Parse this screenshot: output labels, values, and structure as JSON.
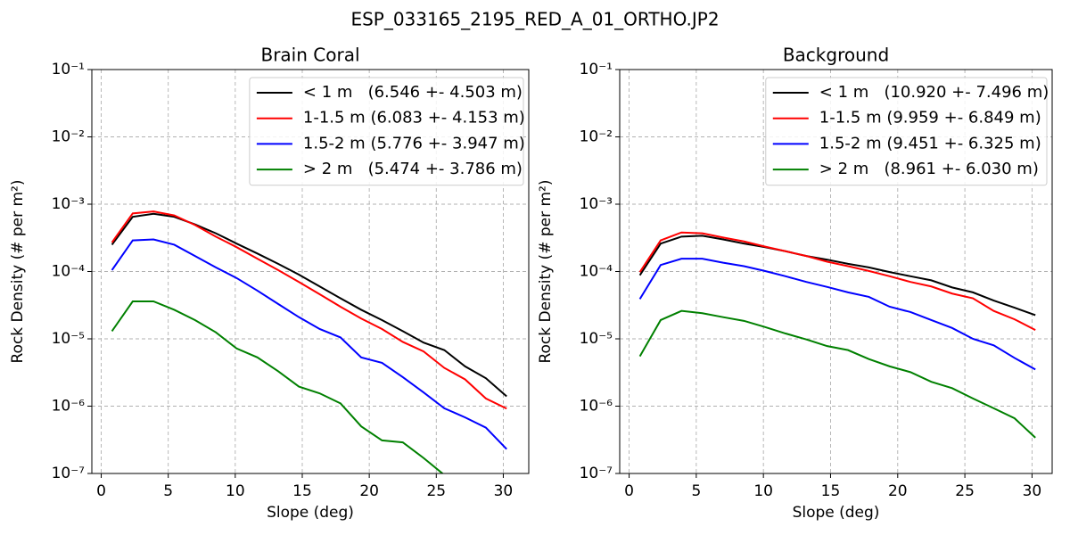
{
  "title": "ESP_033165_2195_RED_A_01_ORTHO.JP2",
  "chart_data": [
    {
      "type": "line",
      "title": "Brain Coral",
      "xlabel": "Slope (deg)",
      "ylabel": "Rock Density (# per m²)",
      "log_y": true,
      "grid": true,
      "legend": "upper right",
      "xlim": [
        -0.7,
        31.9
      ],
      "xticks": [
        0,
        5,
        10,
        15,
        20,
        25,
        30
      ],
      "ylim": [
        1e-07,
        0.1
      ],
      "yticks": [
        {
          "value": 1e-07,
          "label": "10⁻⁷"
        },
        {
          "value": 1e-06,
          "label": "10⁻⁶"
        },
        {
          "value": 1e-05,
          "label": "10⁻⁵"
        },
        {
          "value": 0.0001,
          "label": "10⁻⁴"
        },
        {
          "value": 0.001,
          "label": "10⁻³"
        },
        {
          "value": 0.01,
          "label": "10⁻²"
        },
        {
          "value": 0.1,
          "label": "10⁻¹"
        }
      ],
      "x": [
        0.8,
        2.35,
        3.9,
        5.45,
        7.0,
        8.55,
        10.1,
        11.65,
        13.2,
        14.75,
        16.3,
        17.85,
        19.4,
        20.95,
        22.5,
        24.05,
        25.6,
        27.15,
        28.7,
        30.25
      ],
      "series": [
        {
          "name": "< 1 m   (6.546 +- 4.503 m)",
          "color": "#000000",
          "values": [
            0.00025,
            0.00065,
            0.00072,
            0.00065,
            0.0005,
            0.00037,
            0.00026,
            0.000185,
            0.00013,
            9e-05,
            6e-05,
            4e-05,
            2.7e-05,
            1.9e-05,
            1.3e-05,
            8.8e-06,
            6.8e-06,
            3.9e-06,
            2.6e-06,
            1.4e-06
          ]
        },
        {
          "name": "1-1.5 m (6.083 +- 4.153 m)",
          "color": "#ff0000",
          "values": [
            0.00027,
            0.00073,
            0.00078,
            0.00068,
            0.00049,
            0.00033,
            0.00023,
            0.000155,
            0.000105,
            7e-05,
            4.6e-05,
            3e-05,
            2e-05,
            1.4e-05,
            9e-06,
            6.5e-06,
            3.7e-06,
            2.5e-06,
            1.3e-06,
            9.2e-07
          ]
        },
        {
          "name": "1.5-2 m (5.776 +- 3.947 m)",
          "color": "#0000ff",
          "values": [
            0.000105,
            0.00029,
            0.0003,
            0.00025,
            0.00017,
            0.000115,
            8e-05,
            5.2e-05,
            3.3e-05,
            2.1e-05,
            1.4e-05,
            1.05e-05,
            5.3e-06,
            4.4e-06,
            2.7e-06,
            1.6e-06,
            9.3e-07,
            6.8e-07,
            4.8e-07,
            2.3e-07
          ]
        },
        {
          "name": "> 2 m   (5.474 +- 3.786 m)",
          "color": "#008000",
          "values": [
            1.3e-05,
            3.6e-05,
            3.6e-05,
            2.7e-05,
            1.9e-05,
            1.25e-05,
            7.2e-06,
            5.3e-06,
            3.3e-06,
            1.95e-06,
            1.55e-06,
            1.1e-06,
            5e-07,
            3.1e-07,
            2.9e-07,
            1.7e-07,
            9.5e-08,
            null,
            null,
            null
          ]
        }
      ]
    },
    {
      "type": "line",
      "title": "Background",
      "xlabel": "Slope (deg)",
      "ylabel": "Rock Density (# per m²)",
      "log_y": true,
      "grid": true,
      "legend": "upper right",
      "xlim": [
        -0.7,
        31.5
      ],
      "xticks": [
        0,
        5,
        10,
        15,
        20,
        25,
        30
      ],
      "ylim": [
        1e-07,
        0.1
      ],
      "yticks": [
        {
          "value": 1e-07,
          "label": "10⁻⁷"
        },
        {
          "value": 1e-06,
          "label": "10⁻⁶"
        },
        {
          "value": 1e-05,
          "label": "10⁻⁵"
        },
        {
          "value": 0.0001,
          "label": "10⁻⁴"
        },
        {
          "value": 0.001,
          "label": "10⁻³"
        },
        {
          "value": 0.01,
          "label": "10⁻²"
        },
        {
          "value": 0.1,
          "label": "10⁻¹"
        }
      ],
      "x": [
        0.8,
        2.35,
        3.9,
        5.45,
        7.0,
        8.55,
        10.1,
        11.65,
        13.2,
        14.75,
        16.3,
        17.85,
        19.4,
        20.95,
        22.5,
        24.05,
        25.6,
        27.15,
        28.7,
        30.25
      ],
      "series": [
        {
          "name": "< 1 m   (10.920 +- 7.496 m)",
          "color": "#000000",
          "values": [
            8.8e-05,
            0.00026,
            0.00033,
            0.00034,
            0.0003,
            0.00026,
            0.00023,
            0.0002,
            0.00017,
            0.00015,
            0.00013,
            0.000115,
            9.8e-05,
            8.5e-05,
            7.4e-05,
            5.8e-05,
            4.9e-05,
            3.7e-05,
            2.9e-05,
            2.25e-05
          ]
        },
        {
          "name": "1-1.5 m (9.959 +- 6.849 m)",
          "color": "#ff0000",
          "values": [
            9.8e-05,
            0.00029,
            0.00038,
            0.00037,
            0.00032,
            0.00028,
            0.000235,
            0.0002,
            0.00017,
            0.00014,
            0.00012,
            0.000102,
            8.5e-05,
            7e-05,
            6e-05,
            4.7e-05,
            4e-05,
            2.6e-05,
            1.95e-05,
            1.35e-05
          ]
        },
        {
          "name": "1.5-2 m (9.451 +- 6.325 m)",
          "color": "#0000ff",
          "values": [
            3.9e-05,
            0.000125,
            0.000155,
            0.000155,
            0.000135,
            0.00012,
            0.000102,
            8.5e-05,
            7e-05,
            5.9e-05,
            4.9e-05,
            4.2e-05,
            3e-05,
            2.5e-05,
            1.9e-05,
            1.45e-05,
            1e-05,
            8e-06,
            5.2e-06,
            3.5e-06
          ]
        },
        {
          "name": "> 2 m   (8.961 +- 6.030 m)",
          "color": "#008000",
          "values": [
            5.5e-06,
            1.9e-05,
            2.6e-05,
            2.4e-05,
            2.1e-05,
            1.85e-05,
            1.5e-05,
            1.2e-05,
            9.8e-06,
            7.8e-06,
            6.8e-06,
            5e-06,
            3.9e-06,
            3.2e-06,
            2.3e-06,
            1.85e-06,
            1.3e-06,
            9.3e-07,
            6.6e-07,
            3.4e-07
          ]
        }
      ]
    }
  ]
}
